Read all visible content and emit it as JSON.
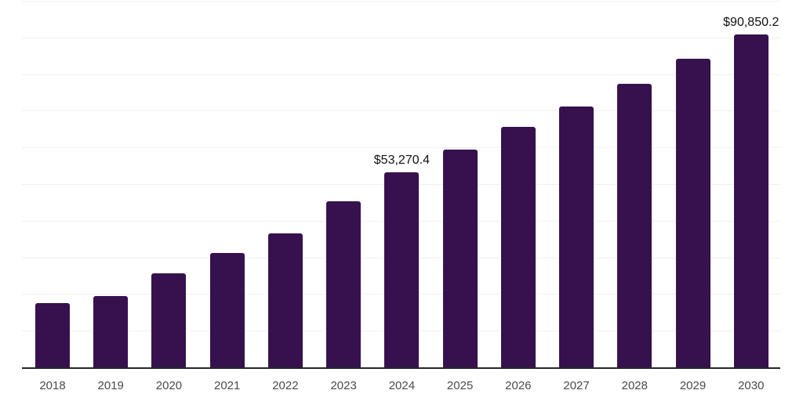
{
  "chart": {
    "background_color": "#ffffff",
    "bar_color": "#36114e",
    "grid_color": "#f0f0f0",
    "axis_color": "#262626",
    "tick_label_color": "#4a4a4a",
    "data_label_color": "#111111"
  },
  "chart_data": {
    "type": "bar",
    "title": "",
    "xlabel": "",
    "ylabel": "",
    "categories": [
      "2018",
      "2019",
      "2020",
      "2021",
      "2022",
      "2023",
      "2024",
      "2025",
      "2026",
      "2027",
      "2028",
      "2029",
      "2030"
    ],
    "values": [
      17500,
      19450,
      25700,
      31150,
      36500,
      45300,
      53270.4,
      59300,
      65600,
      71250,
      77300,
      84250,
      90850.2
    ],
    "data_labels": {
      "2024": "$53,270.4",
      "2030": "$90,850.2"
    },
    "ylim": [
      0,
      100000
    ],
    "grid_step": 10000,
    "grid": "horizontal",
    "legend_position": "none",
    "x_axis_line": true,
    "y_axis_labels": false
  }
}
